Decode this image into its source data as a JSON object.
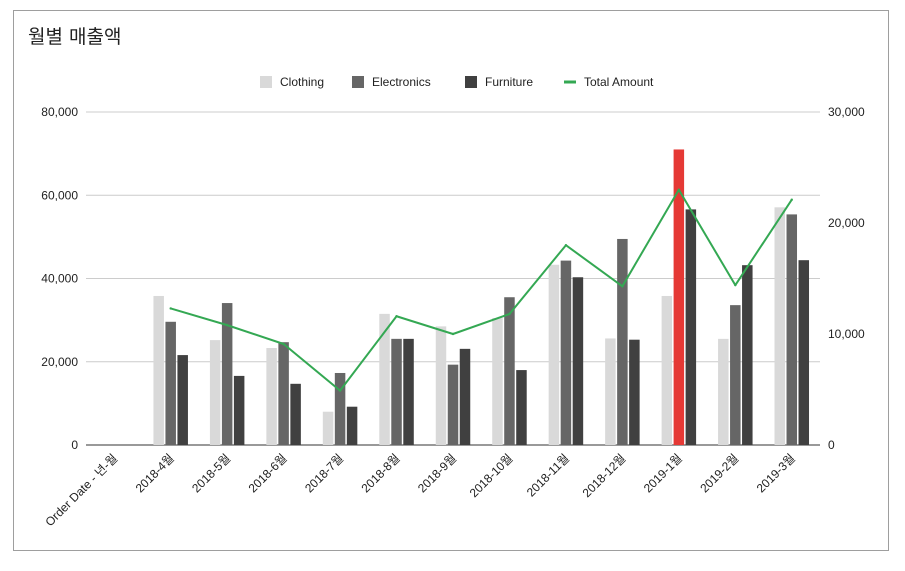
{
  "chart_data": {
    "type": "bar",
    "title": "월별 매출액",
    "categories": [
      "Order Date - 년-월",
      "2018-4월",
      "2018-5월",
      "2018-6월",
      "2018-7월",
      "2018-8월",
      "2018-9월",
      "2018-10월",
      "2018-11월",
      "2018-12월",
      "2019-1월",
      "2019-2월",
      "2019-3월"
    ],
    "series": [
      {
        "name": "Clothing",
        "type": "bar",
        "axis": "left",
        "color": "#d9d9d9",
        "values": [
          null,
          35800,
          25200,
          23300,
          8000,
          31500,
          28500,
          30500,
          43300,
          25600,
          35800,
          25500,
          57100
        ]
      },
      {
        "name": "Electronics",
        "type": "bar",
        "axis": "left",
        "color": "#666666",
        "values": [
          null,
          29600,
          34100,
          24700,
          17300,
          25500,
          19300,
          35500,
          44300,
          49500,
          71000,
          33600,
          55400
        ],
        "highlight": {
          "index": 10,
          "color": "#e53935"
        }
      },
      {
        "name": "Furniture",
        "type": "bar",
        "axis": "left",
        "color": "#404040",
        "values": [
          null,
          21600,
          16600,
          14700,
          9200,
          25500,
          23100,
          18000,
          40300,
          25300,
          56600,
          43200,
          44400
        ]
      },
      {
        "name": "Total Amount",
        "type": "line",
        "axis": "right",
        "color": "#34a853",
        "values": [
          null,
          12300,
          10800,
          9100,
          4900,
          11600,
          10000,
          11800,
          18000,
          14300,
          23000,
          14400,
          22100
        ]
      }
    ],
    "y_left": {
      "min": 0,
      "max": 80000,
      "ticks": [
        "0",
        "20,000",
        "40,000",
        "60,000",
        "80,000"
      ]
    },
    "y_right": {
      "min": 0,
      "max": 30000,
      "ticks": [
        "0",
        "10,000",
        "20,000",
        "30,000"
      ]
    },
    "grid": true,
    "legend": "top-center"
  }
}
